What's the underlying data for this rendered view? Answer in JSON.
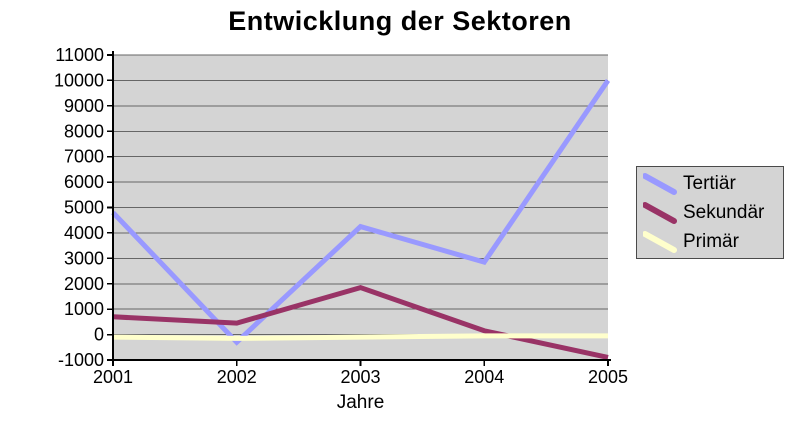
{
  "chart_data": {
    "type": "line",
    "title": "Entwicklung der Sektoren",
    "xlabel": "Jahre",
    "ylabel": "",
    "categories": [
      "2001",
      "2002",
      "2003",
      "2004",
      "2005"
    ],
    "series": [
      {
        "name": "Tertiär",
        "color": "#9999ff",
        "values": [
          4800,
          -300,
          4250,
          2850,
          10000
        ]
      },
      {
        "name": "Sekundär",
        "color": "#993366",
        "values": [
          700,
          450,
          1850,
          150,
          -900
        ]
      },
      {
        "name": "Primär",
        "color": "#ffffcc",
        "values": [
          -100,
          -150,
          -100,
          -50,
          -50
        ]
      }
    ],
    "ylim": [
      -1000,
      11000
    ],
    "ytick_step": 1000,
    "grid": true,
    "legend_position": "right",
    "plot_background": "#d4d4d4",
    "gridline_color": "#666666",
    "axis_color": "#000000",
    "text_color": "#000000"
  }
}
